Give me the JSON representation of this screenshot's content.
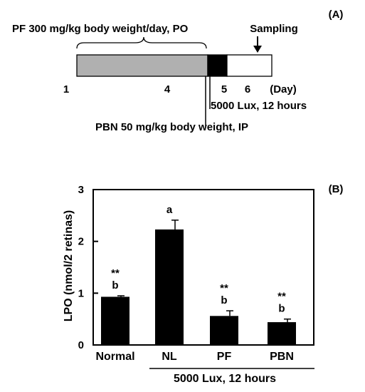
{
  "panel_a": {
    "label": "(A)",
    "pf_treatment": "PF 300 mg/kg body weight/day, PO",
    "sampling": "Sampling",
    "day_labels": [
      "1",
      "4",
      "5",
      "6",
      "(Day)"
    ],
    "light_exposure": "5000 Lux, 12 hours",
    "pbn_treatment": "PBN 50 mg/kg body weight, IP",
    "colors": {
      "pf_bar": "#b0b0b0",
      "light_bar": "#000000",
      "sampling_bar": "#ffffff"
    }
  },
  "panel_b": {
    "label": "(B)",
    "group_bracket_label": "5000 Lux, 12 hours"
  },
  "chart_data": {
    "type": "bar",
    "categories": [
      "Normal",
      "NL",
      "PF",
      "PBN"
    ],
    "values": [
      0.93,
      2.23,
      0.56,
      0.44
    ],
    "errors": [
      0.02,
      0.18,
      0.1,
      0.06
    ],
    "ylabel": "LPO (nmol/2 retinas)",
    "ylim": [
      0,
      3
    ],
    "yticks": [
      "0",
      "1",
      "2",
      "3"
    ],
    "annotations": [
      {
        "category": "Normal",
        "stars": "**",
        "letter": "b"
      },
      {
        "category": "NL",
        "stars": "",
        "letter": "a"
      },
      {
        "category": "PF",
        "stars": "**",
        "letter": "b"
      },
      {
        "category": "PBN",
        "stars": "**",
        "letter": "b"
      }
    ],
    "grid": false,
    "bar_color": "#000000"
  }
}
